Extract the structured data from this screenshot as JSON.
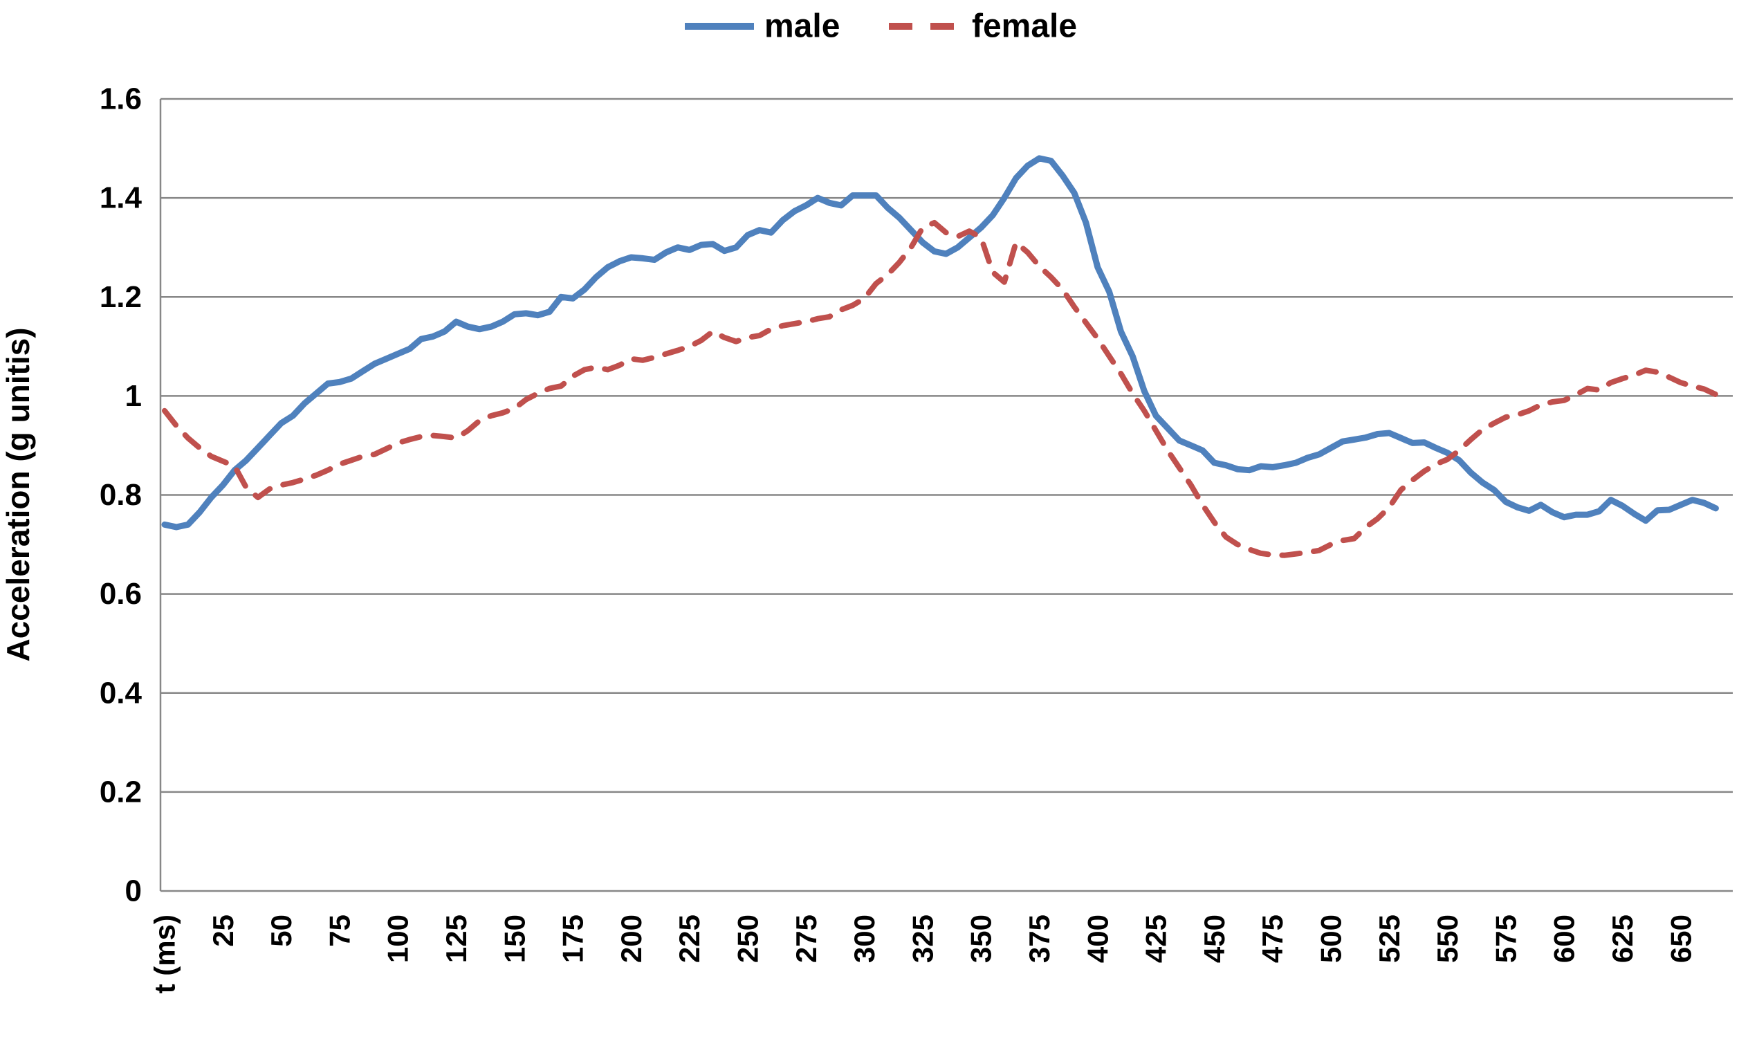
{
  "chart_data": {
    "type": "line",
    "title": "",
    "xlabel": "t (ms)",
    "ylabel": "Acceleration (g unitis)",
    "ylim": [
      0,
      1.6
    ],
    "ytick_step": 0.2,
    "grid": "horizontal",
    "legend_position": "top-center",
    "x_tick_labels": [
      "t (ms)",
      "25",
      "50",
      "75",
      "100",
      "125",
      "150",
      "175",
      "200",
      "225",
      "250",
      "275",
      "300",
      "325",
      "350",
      "375",
      "400",
      "425",
      "450",
      "475",
      "500",
      "525",
      "550",
      "575",
      "600",
      "625",
      "650"
    ],
    "x_tick_interval_ms": 25,
    "t_start": 0,
    "t_step": 5,
    "colors": {
      "male": "#4F81BD",
      "female": "#C0504D",
      "gridline": "#878787"
    },
    "series": [
      {
        "name": "male",
        "style": "solid",
        "values": [
          0.74,
          0.735,
          0.74,
          0.765,
          0.795,
          0.82,
          0.85,
          0.87,
          0.895,
          0.92,
          0.945,
          0.96,
          0.985,
          1.005,
          1.025,
          1.028,
          1.035,
          1.05,
          1.065,
          1.075,
          1.085,
          1.095,
          1.115,
          1.12,
          1.13,
          1.15,
          1.14,
          1.135,
          1.14,
          1.15,
          1.165,
          1.167,
          1.163,
          1.17,
          1.2,
          1.197,
          1.215,
          1.24,
          1.26,
          1.272,
          1.28,
          1.278,
          1.275,
          1.29,
          1.3,
          1.295,
          1.305,
          1.307,
          1.293,
          1.3,
          1.325,
          1.335,
          1.33,
          1.355,
          1.373,
          1.385,
          1.4,
          1.39,
          1.385,
          1.405,
          1.405,
          1.405,
          1.38,
          1.36,
          1.335,
          1.31,
          1.292,
          1.287,
          1.3,
          1.32,
          1.34,
          1.365,
          1.4,
          1.44,
          1.465,
          1.48,
          1.475,
          1.445,
          1.41,
          1.35,
          1.26,
          1.21,
          1.13,
          1.08,
          1.01,
          0.96,
          0.935,
          0.91,
          0.9,
          0.89,
          0.865,
          0.86,
          0.852,
          0.85,
          0.858,
          0.856,
          0.86,
          0.865,
          0.875,
          0.882,
          0.895,
          0.908,
          0.912,
          0.916,
          0.923,
          0.925,
          0.915,
          0.905,
          0.906,
          0.895,
          0.885,
          0.87,
          0.845,
          0.825,
          0.81,
          0.786,
          0.775,
          0.768,
          0.78,
          0.765,
          0.755,
          0.76,
          0.76,
          0.767,
          0.79,
          0.778,
          0.762,
          0.748,
          0.769,
          0.77,
          0.78,
          0.79,
          0.784,
          0.773
        ]
      },
      {
        "name": "female",
        "style": "dashed",
        "values": [
          0.97,
          0.94,
          0.915,
          0.895,
          0.878,
          0.868,
          0.858,
          0.815,
          0.795,
          0.812,
          0.82,
          0.825,
          0.832,
          0.84,
          0.85,
          0.862,
          0.87,
          0.878,
          0.882,
          0.893,
          0.905,
          0.912,
          0.918,
          0.92,
          0.918,
          0.915,
          0.93,
          0.95,
          0.96,
          0.966,
          0.975,
          0.993,
          1.005,
          1.015,
          1.02,
          1.04,
          1.053,
          1.058,
          1.053,
          1.062,
          1.075,
          1.072,
          1.078,
          1.085,
          1.092,
          1.1,
          1.112,
          1.13,
          1.118,
          1.11,
          1.118,
          1.122,
          1.135,
          1.142,
          1.146,
          1.15,
          1.156,
          1.16,
          1.174,
          1.183,
          1.197,
          1.227,
          1.245,
          1.27,
          1.3,
          1.34,
          1.35,
          1.33,
          1.322,
          1.333,
          1.32,
          1.25,
          1.23,
          1.31,
          1.29,
          1.262,
          1.24,
          1.215,
          1.18,
          1.148,
          1.116,
          1.08,
          1.045,
          1.005,
          0.97,
          0.93,
          0.89,
          0.855,
          0.82,
          0.78,
          0.745,
          0.715,
          0.7,
          0.69,
          0.682,
          0.679,
          0.678,
          0.681,
          0.684,
          0.688,
          0.7,
          0.708,
          0.712,
          0.735,
          0.752,
          0.775,
          0.81,
          0.83,
          0.848,
          0.862,
          0.872,
          0.89,
          0.912,
          0.932,
          0.945,
          0.957,
          0.962,
          0.97,
          0.982,
          0.988,
          0.991,
          1.002,
          1.015,
          1.012,
          1.027,
          1.035,
          1.042,
          1.052,
          1.048,
          1.038,
          1.027,
          1.02,
          1.014,
          1.003
        ]
      }
    ]
  }
}
